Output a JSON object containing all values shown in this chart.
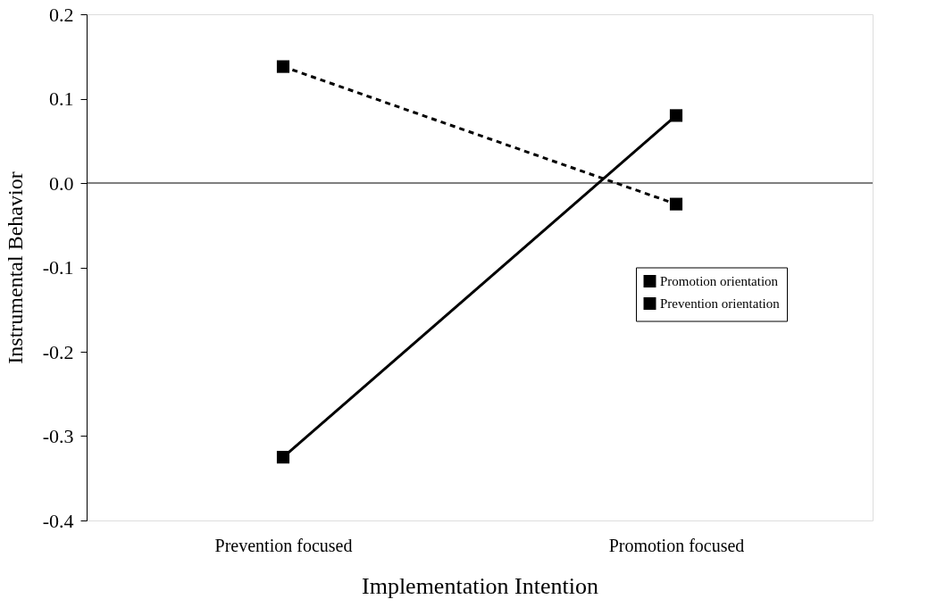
{
  "chart_data": {
    "type": "line",
    "xlabel": "Implementation Intention",
    "ylabel": "Instrumental Behavior",
    "categories": [
      "Prevention focused",
      "Promotion focused"
    ],
    "series": [
      {
        "name": "Promotion orientation",
        "color": "#000000",
        "values": [
          -0.325,
          0.08
        ],
        "line_style": "solid"
      },
      {
        "name": "Prevention orientation",
        "color": "#000000",
        "values": [
          0.138,
          -0.025
        ],
        "line_style": "dashed"
      }
    ],
    "ylim": [
      -0.4,
      0.2
    ],
    "yticks": [
      {
        "value": -0.4,
        "label": "-0.4"
      },
      {
        "value": -0.3,
        "label": "-0.3"
      },
      {
        "value": -0.2,
        "label": "-0.2"
      },
      {
        "value": -0.1,
        "label": "-0.1"
      },
      {
        "value": 0,
        "label": "0.0"
      },
      {
        "value": 0.1,
        "label": "0.1"
      },
      {
        "value": 0.2,
        "label": "0.2"
      }
    ],
    "ref_lines": [
      {
        "axis": "y",
        "value": 0,
        "color": "#000000"
      }
    ],
    "marker": "square",
    "legend": "right",
    "grid": false
  }
}
